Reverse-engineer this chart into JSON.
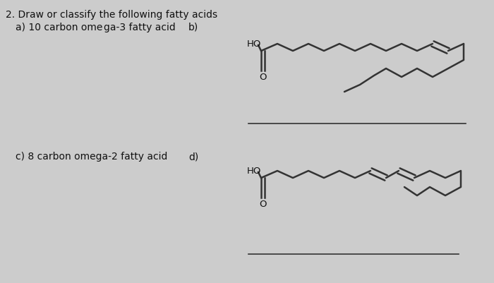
{
  "bg_color": "#cccccc",
  "text_color": "#111111",
  "line_color": "#333333",
  "title1": "2. Draw or classify the following fatty acids",
  "title2": "   a) 10 carbon omeγa-3 fatty acid   b)",
  "label_c": "c) 8 carbon omega-2 fatty acid",
  "label_d": "d)",
  "lw": 1.8
}
